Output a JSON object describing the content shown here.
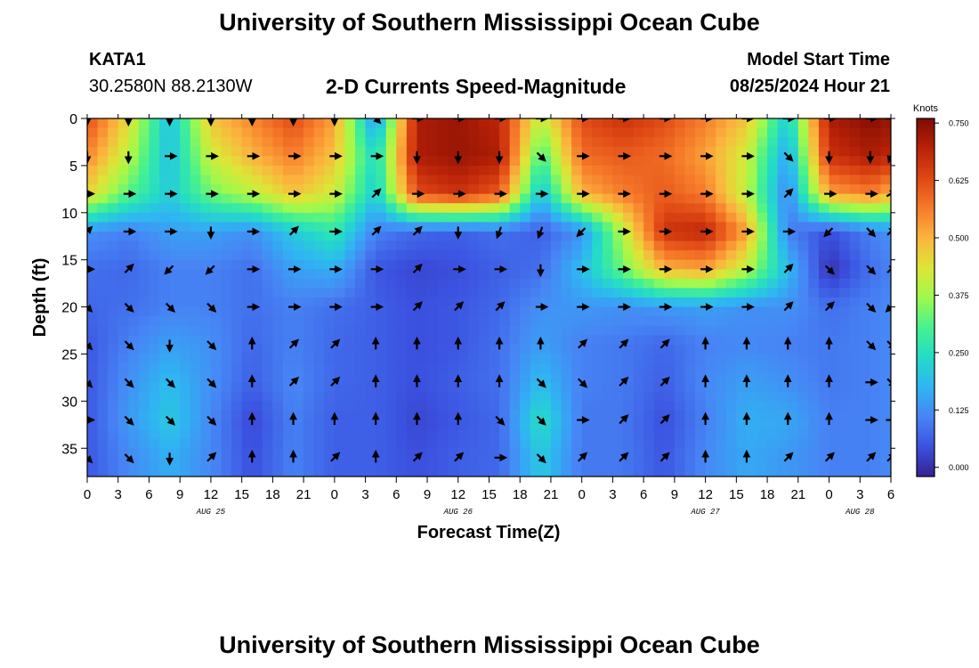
{
  "header": {
    "title": "University of Southern Mississippi Ocean Cube",
    "station": "KATA1",
    "coords": "30.2580N  88.2130W",
    "chart_title": "2-D Currents Speed-Magnitude",
    "model_start_label": "Model Start Time",
    "model_start_value": "08/25/2024 Hour 21"
  },
  "footer": {
    "title": "University of Southern Mississippi Ocean Cube"
  },
  "chart_data": {
    "type": "heatmap",
    "title": "2-D Currents Speed-Magnitude",
    "xlabel": "Forecast Time(Z)",
    "ylabel": "Depth (ft)",
    "x_start_hour": 0,
    "x_end_hour": 78,
    "x_ticks": [
      "0",
      "3",
      "6",
      "9",
      "12",
      "15",
      "18",
      "21",
      "0",
      "3",
      "6",
      "9",
      "12",
      "15",
      "18",
      "21",
      "0",
      "3",
      "6",
      "9",
      "12",
      "15",
      "18",
      "21",
      "0",
      "3",
      "6"
    ],
    "date_labels": [
      {
        "hour": 12,
        "label": "AUG 25"
      },
      {
        "hour": 36,
        "label": "AUG 26"
      },
      {
        "hour": 60,
        "label": "AUG 27"
      },
      {
        "hour": 75,
        "label": "AUG 28"
      }
    ],
    "ylim": [
      0,
      38
    ],
    "y_ticks": [
      0,
      5,
      10,
      15,
      20,
      25,
      30,
      35
    ],
    "colorbar": {
      "label": "Knots",
      "range": [
        0,
        0.75
      ],
      "ticks": [
        "0.750",
        "0.625",
        "0.500",
        "0.375",
        "0.250",
        "0.125",
        "0.000"
      ],
      "colors": [
        "#34228f",
        "#3b51e0",
        "#4785f5",
        "#2fb5f2",
        "#24dcc6",
        "#46f18f",
        "#a0f94c",
        "#dde536",
        "#fbb43e",
        "#f67a2a",
        "#df4714",
        "#b82207",
        "#7e0b03"
      ]
    },
    "speed_grid": {
      "depths": [
        0,
        4,
        8,
        12,
        16,
        20,
        24,
        28,
        32,
        36
      ],
      "hours": [
        0,
        4,
        8,
        12,
        16,
        20,
        24,
        28,
        32,
        36,
        40,
        44,
        48,
        52,
        56,
        60,
        64,
        68,
        72,
        76,
        78
      ],
      "values": [
        [
          0.62,
          0.45,
          0.2,
          0.48,
          0.55,
          0.62,
          0.52,
          0.14,
          0.7,
          0.72,
          0.68,
          0.4,
          0.62,
          0.66,
          0.62,
          0.56,
          0.48,
          0.22,
          0.7,
          0.74,
          0.72
        ],
        [
          0.55,
          0.4,
          0.2,
          0.42,
          0.5,
          0.56,
          0.48,
          0.24,
          0.7,
          0.72,
          0.7,
          0.3,
          0.58,
          0.6,
          0.58,
          0.52,
          0.42,
          0.16,
          0.66,
          0.7,
          0.68
        ],
        [
          0.46,
          0.32,
          0.22,
          0.34,
          0.4,
          0.48,
          0.42,
          0.22,
          0.62,
          0.66,
          0.6,
          0.2,
          0.5,
          0.56,
          0.6,
          0.56,
          0.4,
          0.12,
          0.52,
          0.56,
          0.5
        ],
        [
          0.14,
          0.12,
          0.16,
          0.16,
          0.14,
          0.22,
          0.28,
          0.12,
          0.09,
          0.08,
          0.1,
          0.08,
          0.14,
          0.4,
          0.66,
          0.68,
          0.52,
          0.12,
          0.06,
          0.12,
          0.14
        ],
        [
          0.1,
          0.09,
          0.12,
          0.12,
          0.1,
          0.16,
          0.18,
          0.07,
          0.05,
          0.06,
          0.08,
          0.1,
          0.2,
          0.34,
          0.5,
          0.52,
          0.4,
          0.2,
          0.02,
          0.1,
          0.12
        ],
        [
          0.09,
          0.1,
          0.12,
          0.12,
          0.1,
          0.12,
          0.1,
          0.08,
          0.06,
          0.07,
          0.09,
          0.14,
          0.15,
          0.14,
          0.15,
          0.16,
          0.14,
          0.14,
          0.1,
          0.12,
          0.13
        ],
        [
          0.07,
          0.12,
          0.16,
          0.14,
          0.09,
          0.12,
          0.09,
          0.08,
          0.06,
          0.07,
          0.1,
          0.16,
          0.12,
          0.11,
          0.09,
          0.12,
          0.13,
          0.12,
          0.11,
          0.12,
          0.13
        ],
        [
          0.07,
          0.14,
          0.2,
          0.14,
          0.08,
          0.13,
          0.09,
          0.08,
          0.06,
          0.08,
          0.1,
          0.2,
          0.12,
          0.11,
          0.08,
          0.13,
          0.16,
          0.14,
          0.11,
          0.12,
          0.13
        ],
        [
          0.07,
          0.15,
          0.22,
          0.13,
          0.05,
          0.12,
          0.08,
          0.08,
          0.05,
          0.07,
          0.09,
          0.26,
          0.11,
          0.11,
          0.06,
          0.12,
          0.18,
          0.17,
          0.12,
          0.12,
          0.13
        ],
        [
          0.07,
          0.13,
          0.18,
          0.13,
          0.06,
          0.12,
          0.08,
          0.08,
          0.06,
          0.08,
          0.09,
          0.22,
          0.11,
          0.11,
          0.07,
          0.13,
          0.17,
          0.15,
          0.12,
          0.12,
          0.13
        ]
      ]
    },
    "vectors": {
      "hours": [
        0,
        4,
        8,
        12,
        16,
        20,
        24,
        28,
        32,
        36,
        40,
        44,
        48,
        52,
        56,
        60,
        64,
        68,
        72,
        76,
        78
      ],
      "depths": [
        0,
        4,
        8,
        12,
        16,
        20,
        24,
        28,
        32,
        36
      ],
      "directions_deg": [
        [
          180,
          180,
          180,
          180,
          180,
          180,
          180,
          135,
          90,
          90,
          90,
          90,
          90,
          90,
          90,
          90,
          90,
          90,
          90,
          90,
          90
        ],
        [
          180,
          180,
          90,
          90,
          90,
          90,
          90,
          90,
          180,
          180,
          180,
          135,
          90,
          90,
          90,
          90,
          90,
          135,
          180,
          180,
          200
        ],
        [
          90,
          90,
          90,
          90,
          90,
          90,
          90,
          45,
          90,
          90,
          90,
          90,
          90,
          90,
          90,
          90,
          90,
          45,
          90,
          90,
          60
        ],
        [
          45,
          90,
          90,
          180,
          90,
          45,
          90,
          45,
          45,
          180,
          200,
          200,
          225,
          90,
          90,
          90,
          90,
          90,
          225,
          135,
          45
        ],
        [
          90,
          45,
          225,
          225,
          90,
          90,
          90,
          90,
          45,
          90,
          90,
          180,
          90,
          90,
          90,
          90,
          90,
          45,
          135,
          135,
          45
        ],
        [
          135,
          135,
          135,
          135,
          90,
          90,
          90,
          90,
          45,
          45,
          45,
          90,
          90,
          90,
          90,
          90,
          90,
          45,
          45,
          135,
          225
        ],
        [
          135,
          135,
          180,
          135,
          0,
          45,
          45,
          0,
          0,
          0,
          0,
          0,
          45,
          45,
          45,
          0,
          0,
          0,
          0,
          135,
          135
        ],
        [
          135,
          135,
          135,
          135,
          0,
          45,
          45,
          0,
          0,
          0,
          0,
          135,
          135,
          45,
          45,
          0,
          0,
          0,
          0,
          90,
          135
        ],
        [
          90,
          135,
          135,
          135,
          0,
          0,
          0,
          0,
          0,
          0,
          135,
          135,
          90,
          45,
          45,
          0,
          0,
          0,
          0,
          90,
          90
        ],
        [
          135,
          135,
          180,
          45,
          0,
          0,
          45,
          0,
          45,
          45,
          90,
          135,
          45,
          45,
          45,
          0,
          0,
          45,
          45,
          45,
          45
        ]
      ]
    }
  }
}
